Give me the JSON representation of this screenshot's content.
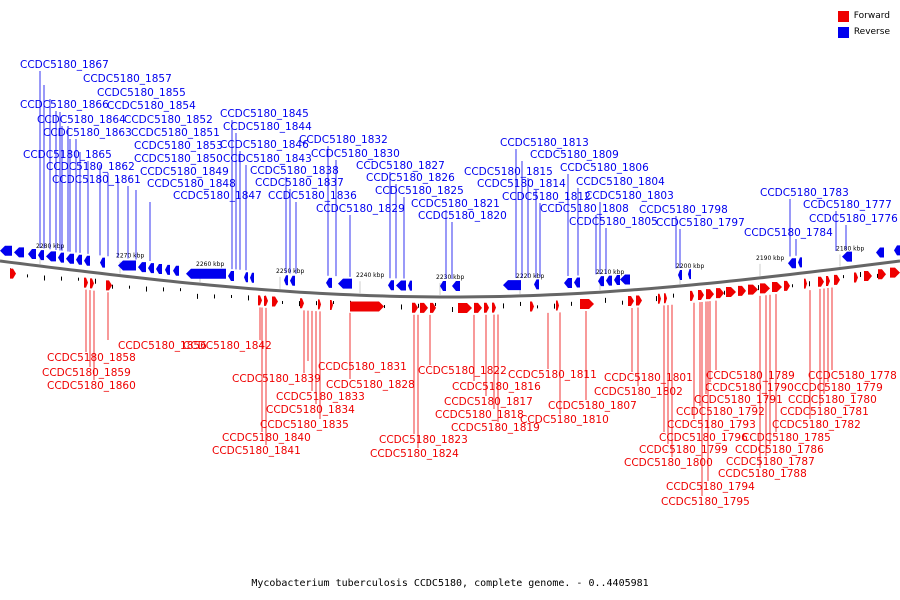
{
  "legend": {
    "forward_label": "Forward",
    "reverse_label": "Reverse",
    "forward_color": "#ee0000",
    "reverse_color": "#0000ee"
  },
  "caption": "Mycobacterium tuberculosis CCDC5180, complete genome. - 0..4405981",
  "scale_ticks": [
    "2280 kbp",
    "2270 kbp",
    "2260 kbp",
    "2250 kbp",
    "2240 kbp",
    "2230 kbp",
    "2220 kbp",
    "2210 kbp",
    "2200 kbp",
    "2190 kbp",
    "2180 kbp"
  ],
  "reverse_genes": [
    "CCDC5180_1867",
    "CCDC5180_1857",
    "CCDC5180_1855",
    "CCDC5180_1866",
    "CCDC5180_1854",
    "CCDC5180_1864",
    "CCDC5180_1852",
    "CCDC5180_1863",
    "CCDC5180_1851",
    "CCDC5180_1853",
    "CCDC5180_1865",
    "CCDC5180_1850",
    "CCDC5180_1862",
    "CCDC5180_1849",
    "CCDC5180_1861",
    "CCDC5180_1848",
    "CCDC5180_1847",
    "CCDC5180_1845",
    "CCDC5180_1844",
    "CCDC5180_1846",
    "CCDC5180_1843",
    "CCDC5180_1838",
    "CCDC5180_1837",
    "CCDC5180_1836",
    "CCDC5180_1832",
    "CCDC5180_1830",
    "CCDC5180_1827",
    "CCDC5180_1826",
    "CCDC5180_1825",
    "CCDC5180_1829",
    "CCDC5180_1821",
    "CCDC5180_1820",
    "CCDC5180_1813",
    "CCDC5180_1809",
    "CCDC5180_1815",
    "CCDC5180_1806",
    "CCDC5180_1814",
    "CCDC5180_1804",
    "CCDC5180_1812",
    "CCDC5180_1803",
    "CCDC5180_1808",
    "CCDC5180_1798",
    "CCDC5180_1805",
    "CCDC5180_1797",
    "CCDC5180_1783",
    "CCDC5180_1777",
    "CCDC5180_1776",
    "CCDC5180_1784"
  ],
  "forward_genes": [
    "CCDC5180_1856",
    "CCDC5180_1858",
    "CCDC5180_1859",
    "CCDC5180_1860",
    "CCDC5180_1842",
    "CCDC5180_1831",
    "CCDC5180_1839",
    "CCDC5180_1828",
    "CCDC5180_1833",
    "CCDC5180_1834",
    "CCDC5180_1835",
    "CCDC5180_1840",
    "CCDC5180_1841",
    "CCDC5180_1822",
    "CCDC5180_1816",
    "CCDC5180_1817",
    "CCDC5180_1818",
    "CCDC5180_1819",
    "CCDC5180_1823",
    "CCDC5180_1824",
    "CCDC5180_1811",
    "CCDC5180_1807",
    "CCDC5180_1810",
    "CCDC5180_1801",
    "CCDC5180_1802",
    "CCDC5180_1789",
    "CCDC5180_1790",
    "CCDC5180_1791",
    "CCDC5180_1792",
    "CCDC5180_1793",
    "CCDC5180_1796",
    "CCDC5180_1799",
    "CCDC5180_1800",
    "CCDC5180_1794",
    "CCDC5180_1795",
    "CCDC5180_1785",
    "CCDC5180_1786",
    "CCDC5180_1787",
    "CCDC5180_1788",
    "CCDC5180_1778",
    "CCDC5180_1779",
    "CCDC5180_1780",
    "CCDC5180_1781",
    "CCDC5180_1782"
  ]
}
